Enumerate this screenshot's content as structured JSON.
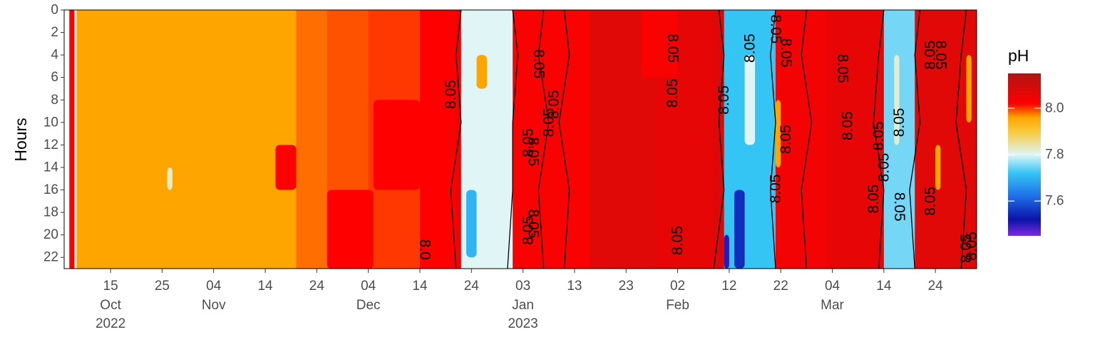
{
  "chart_data": {
    "type": "heatmap",
    "title": "",
    "xlabel": "",
    "ylabel": "Hours",
    "xlim": [
      "2022-10-06",
      "2023-04-01"
    ],
    "ylim": [
      0,
      23
    ],
    "y_ticks": [
      0,
      2,
      4,
      6,
      8,
      10,
      12,
      14,
      16,
      18,
      20,
      22
    ],
    "x_ticks": [
      {
        "date": "2022-10-15",
        "day": "15",
        "month": "Oct",
        "year": "2022"
      },
      {
        "date": "2022-10-25",
        "day": "25",
        "month": "",
        "year": ""
      },
      {
        "date": "2022-11-04",
        "day": "04",
        "month": "Nov",
        "year": ""
      },
      {
        "date": "2022-11-14",
        "day": "14",
        "month": "",
        "year": ""
      },
      {
        "date": "2022-11-24",
        "day": "24",
        "month": "",
        "year": ""
      },
      {
        "date": "2022-12-04",
        "day": "04",
        "month": "Dec",
        "year": ""
      },
      {
        "date": "2022-12-14",
        "day": "14",
        "month": "",
        "year": ""
      },
      {
        "date": "2022-12-24",
        "day": "24",
        "month": "",
        "year": ""
      },
      {
        "date": "2023-01-03",
        "day": "03",
        "month": "Jan",
        "year": "2023"
      },
      {
        "date": "2023-01-13",
        "day": "13",
        "month": "",
        "year": ""
      },
      {
        "date": "2023-01-23",
        "day": "23",
        "month": "",
        "year": ""
      },
      {
        "date": "2023-02-02",
        "day": "02",
        "month": "Feb",
        "year": ""
      },
      {
        "date": "2023-02-12",
        "day": "12",
        "month": "",
        "year": ""
      },
      {
        "date": "2023-02-22",
        "day": "22",
        "month": "",
        "year": ""
      },
      {
        "date": "2023-03-04",
        "day": "04",
        "month": "Mar",
        "year": ""
      },
      {
        "date": "2023-03-14",
        "day": "14",
        "month": "",
        "year": ""
      },
      {
        "date": "2023-03-24",
        "day": "24",
        "month": "",
        "year": ""
      }
    ],
    "colorbar": {
      "title": "pH",
      "range": [
        7.45,
        8.15
      ],
      "ticks": [
        7.6,
        7.8,
        8.0
      ],
      "stops": [
        {
          "value": 7.45,
          "color": "#7b2be0"
        },
        {
          "value": 7.52,
          "color": "#0a12a8"
        },
        {
          "value": 7.62,
          "color": "#1e6fe8"
        },
        {
          "value": 7.72,
          "color": "#35c5f5"
        },
        {
          "value": 7.8,
          "color": "#dff5f6"
        },
        {
          "value": 7.9,
          "color": "#f8c93a"
        },
        {
          "value": 7.96,
          "color": "#ffa500"
        },
        {
          "value": 8.02,
          "color": "#ff0000"
        },
        {
          "value": 8.15,
          "color": "#b01414"
        }
      ]
    },
    "contour_level": 8.05,
    "data_gaps": [
      [
        "2022-10-06",
        "2022-10-07"
      ],
      [
        "2022-10-08",
        "2022-10-08.4"
      ]
    ],
    "bands": [
      {
        "start": "2022-10-06",
        "end": "2022-10-08",
        "ph": 8.02
      },
      {
        "start": "2022-10-08",
        "end": "2022-11-20",
        "ph": 7.96
      },
      {
        "start": "2022-11-20",
        "end": "2022-11-26",
        "ph": 7.98
      },
      {
        "start": "2022-11-26",
        "end": "2022-12-04",
        "ph": 7.99
      },
      {
        "start": "2022-12-04",
        "end": "2022-12-14",
        "ph": 8.0
      },
      {
        "start": "2022-12-14",
        "end": "2022-12-21",
        "ph": 8.02
      },
      {
        "start": "2022-12-21",
        "end": "2022-12-22",
        "ph": 8.05
      },
      {
        "start": "2022-12-22",
        "end": "2023-01-01",
        "ph": 7.8
      },
      {
        "start": "2023-01-01",
        "end": "2023-01-16",
        "ph": 8.03
      },
      {
        "start": "2023-01-16",
        "end": "2023-01-29",
        "ph": 8.07
      },
      {
        "start": "2023-01-29",
        "end": "2023-02-09",
        "ph": 8.06
      },
      {
        "start": "2023-02-09",
        "end": "2023-02-11",
        "ph": 8.08
      },
      {
        "start": "2023-02-11",
        "end": "2023-02-21",
        "ph": 7.72
      },
      {
        "start": "2023-02-21",
        "end": "2023-03-03",
        "ph": 8.04
      },
      {
        "start": "2023-03-03",
        "end": "2023-03-14",
        "ph": 8.06
      },
      {
        "start": "2023-03-14",
        "end": "2023-03-20",
        "ph": 7.75
      },
      {
        "start": "2023-03-20",
        "end": "2023-04-01",
        "ph": 8.07
      }
    ],
    "patches": [
      {
        "start": "2022-10-26",
        "end": "2022-10-27",
        "hour_from": 14,
        "hour_to": 16,
        "ph": 7.82
      },
      {
        "start": "2022-11-26",
        "end": "2022-12-05",
        "hour_from": 16,
        "hour_to": 23,
        "ph": 8.02
      },
      {
        "start": "2022-12-05",
        "end": "2022-12-14",
        "hour_from": 8,
        "hour_to": 16,
        "ph": 8.02
      },
      {
        "start": "2022-11-16",
        "end": "2022-11-20",
        "hour_from": 12,
        "hour_to": 16,
        "ph": 8.02
      },
      {
        "start": "2022-12-25",
        "end": "2022-12-27",
        "hour_from": 4,
        "hour_to": 7,
        "ph": 7.96
      },
      {
        "start": "2022-12-23",
        "end": "2022-12-25",
        "hour_from": 16,
        "hour_to": 22,
        "ph": 7.7
      },
      {
        "start": "2023-01-26",
        "end": "2023-02-02",
        "hour_from": 0,
        "hour_to": 6,
        "ph": 8.03
      },
      {
        "start": "2023-02-13",
        "end": "2023-02-15",
        "hour_from": 16,
        "hour_to": 23,
        "ph": 7.55
      },
      {
        "start": "2023-02-15",
        "end": "2023-02-17",
        "hour_from": 4,
        "hour_to": 12,
        "ph": 7.8
      },
      {
        "start": "2023-02-11",
        "end": "2023-02-12",
        "hour_from": 20,
        "hour_to": 23,
        "ph": 7.5
      },
      {
        "start": "2023-02-21",
        "end": "2023-02-22",
        "hour_from": 8,
        "hour_to": 14,
        "ph": 7.96
      },
      {
        "start": "2023-03-16",
        "end": "2023-03-17",
        "hour_from": 4,
        "hour_to": 12,
        "ph": 7.82
      },
      {
        "start": "2023-03-24",
        "end": "2023-03-25",
        "hour_from": 12,
        "hour_to": 16,
        "ph": 7.96
      },
      {
        "start": "2023-03-30",
        "end": "2023-03-31",
        "hour_from": 4,
        "hour_to": 10,
        "ph": 7.96
      }
    ],
    "contour_lines": [
      {
        "dates": [
          "2022-12-21",
          "2022-12-20",
          "2022-12-22",
          "2022-12-21",
          "2022-12-22"
        ],
        "hours": [
          23,
          16,
          10,
          4,
          0
        ]
      },
      {
        "dates": [
          "2022-12-31",
          "2023-01-01",
          "2023-01-01",
          "2023-01-02",
          "2023-01-01"
        ],
        "hours": [
          23,
          16,
          10,
          4,
          0
        ]
      },
      {
        "dates": [
          "2023-01-07",
          "2023-01-06",
          "2023-01-08",
          "2023-01-06",
          "2023-01-07"
        ],
        "hours": [
          23,
          16,
          10,
          4,
          0
        ]
      },
      {
        "dates": [
          "2023-01-11",
          "2023-01-12",
          "2023-01-10",
          "2023-01-12",
          "2023-01-11"
        ],
        "hours": [
          23,
          16,
          10,
          4,
          0
        ]
      },
      {
        "dates": [
          "2023-02-09",
          "2023-02-11",
          "2023-02-10",
          "2023-02-11",
          "2023-02-10"
        ],
        "hours": [
          23,
          16,
          10,
          4,
          0
        ]
      },
      {
        "dates": [
          "2023-02-21",
          "2023-02-20",
          "2023-02-21",
          "2023-02-20",
          "2023-02-21"
        ],
        "hours": [
          23,
          16,
          10,
          4,
          0
        ]
      },
      {
        "dates": [
          "2023-02-27",
          "2023-02-26",
          "2023-02-28",
          "2023-02-26",
          "2023-02-27"
        ],
        "hours": [
          23,
          16,
          10,
          4,
          0
        ]
      },
      {
        "dates": [
          "2023-03-13",
          "2023-03-14",
          "2023-03-12",
          "2023-03-13",
          "2023-03-14"
        ],
        "hours": [
          23,
          16,
          10,
          4,
          0
        ]
      },
      {
        "dates": [
          "2023-03-20",
          "2023-03-19",
          "2023-03-21",
          "2023-03-20",
          "2023-03-21"
        ],
        "hours": [
          23,
          16,
          10,
          4,
          0
        ]
      },
      {
        "dates": [
          "2023-03-29",
          "2023-03-30",
          "2023-03-28",
          "2023-03-29",
          "2023-03-30"
        ],
        "hours": [
          23,
          16,
          10,
          4,
          0
        ]
      }
    ],
    "contour_labels": [
      {
        "text": "8.05",
        "date": "2022-12-20",
        "hour": 7.5,
        "angle": -90
      },
      {
        "text": "8.0",
        "date": "2022-12-15",
        "hour": 21.3,
        "angle": 90
      },
      {
        "text": "8.05",
        "date": "2023-01-04",
        "hour": 11.8,
        "angle": -90
      },
      {
        "text": "8.05",
        "date": "2023-01-05",
        "hour": 12.6,
        "angle": 90
      },
      {
        "text": "8.05",
        "date": "2023-01-06",
        "hour": 4.8,
        "angle": 90
      },
      {
        "text": "8.05",
        "date": "2023-01-09",
        "hour": 8.4,
        "angle": -90
      },
      {
        "text": "8.05",
        "date": "2023-01-08",
        "hour": 10.0,
        "angle": -90
      },
      {
        "text": "8.05",
        "date": "2023-01-04",
        "hour": 19.6,
        "angle": -90
      },
      {
        "text": "8.05",
        "date": "2023-01-05",
        "hour": 19.0,
        "angle": 90
      },
      {
        "text": "8.05",
        "date": "2023-02-01",
        "hour": 3.4,
        "angle": 90
      },
      {
        "text": "8.05",
        "date": "2023-02-01",
        "hour": 7.4,
        "angle": -90
      },
      {
        "text": "8.05",
        "date": "2023-02-02",
        "hour": 20.5,
        "angle": -90
      },
      {
        "text": "8.05",
        "date": "2023-02-11",
        "hour": 8.0,
        "angle": -90
      },
      {
        "text": "8.05",
        "date": "2023-02-16",
        "hour": 3.4,
        "angle": -90
      },
      {
        "text": "8.05",
        "date": "2023-02-21",
        "hour": 1.7,
        "angle": 90
      },
      {
        "text": "8.05",
        "date": "2023-02-23",
        "hour": 3.8,
        "angle": 90
      },
      {
        "text": "8.05",
        "date": "2023-02-21",
        "hour": 15.9,
        "angle": -90
      },
      {
        "text": "8.05",
        "date": "2023-02-23",
        "hour": 11.5,
        "angle": -90
      },
      {
        "text": "8.05",
        "date": "2023-03-06",
        "hour": 5.2,
        "angle": 90
      },
      {
        "text": "8.05",
        "date": "2023-03-07",
        "hour": 10.3,
        "angle": -90
      },
      {
        "text": "8.05",
        "date": "2023-03-12",
        "hour": 16.8,
        "angle": -90
      },
      {
        "text": "8.05",
        "date": "2023-03-13",
        "hour": 11.2,
        "angle": -90
      },
      {
        "text": "8.05",
        "date": "2023-03-14",
        "hour": 14.0,
        "angle": -90
      },
      {
        "text": "8.05",
        "date": "2023-03-17",
        "hour": 10.0,
        "angle": -90
      },
      {
        "text": "8.05",
        "date": "2023-03-17",
        "hour": 17.5,
        "angle": 90
      },
      {
        "text": "8.05",
        "date": "2023-03-23",
        "hour": 4.0,
        "angle": -90
      },
      {
        "text": "8.05",
        "date": "2023-03-25",
        "hour": 4.0,
        "angle": 90
      },
      {
        "text": "8.05",
        "date": "2023-03-23",
        "hour": 17.0,
        "angle": -90
      },
      {
        "text": "8.05",
        "date": "2023-03-30",
        "hour": 21.2,
        "angle": -90
      },
      {
        "text": "8.05",
        "date": "2023-03-31",
        "hour": 21.0,
        "angle": -90
      }
    ]
  }
}
